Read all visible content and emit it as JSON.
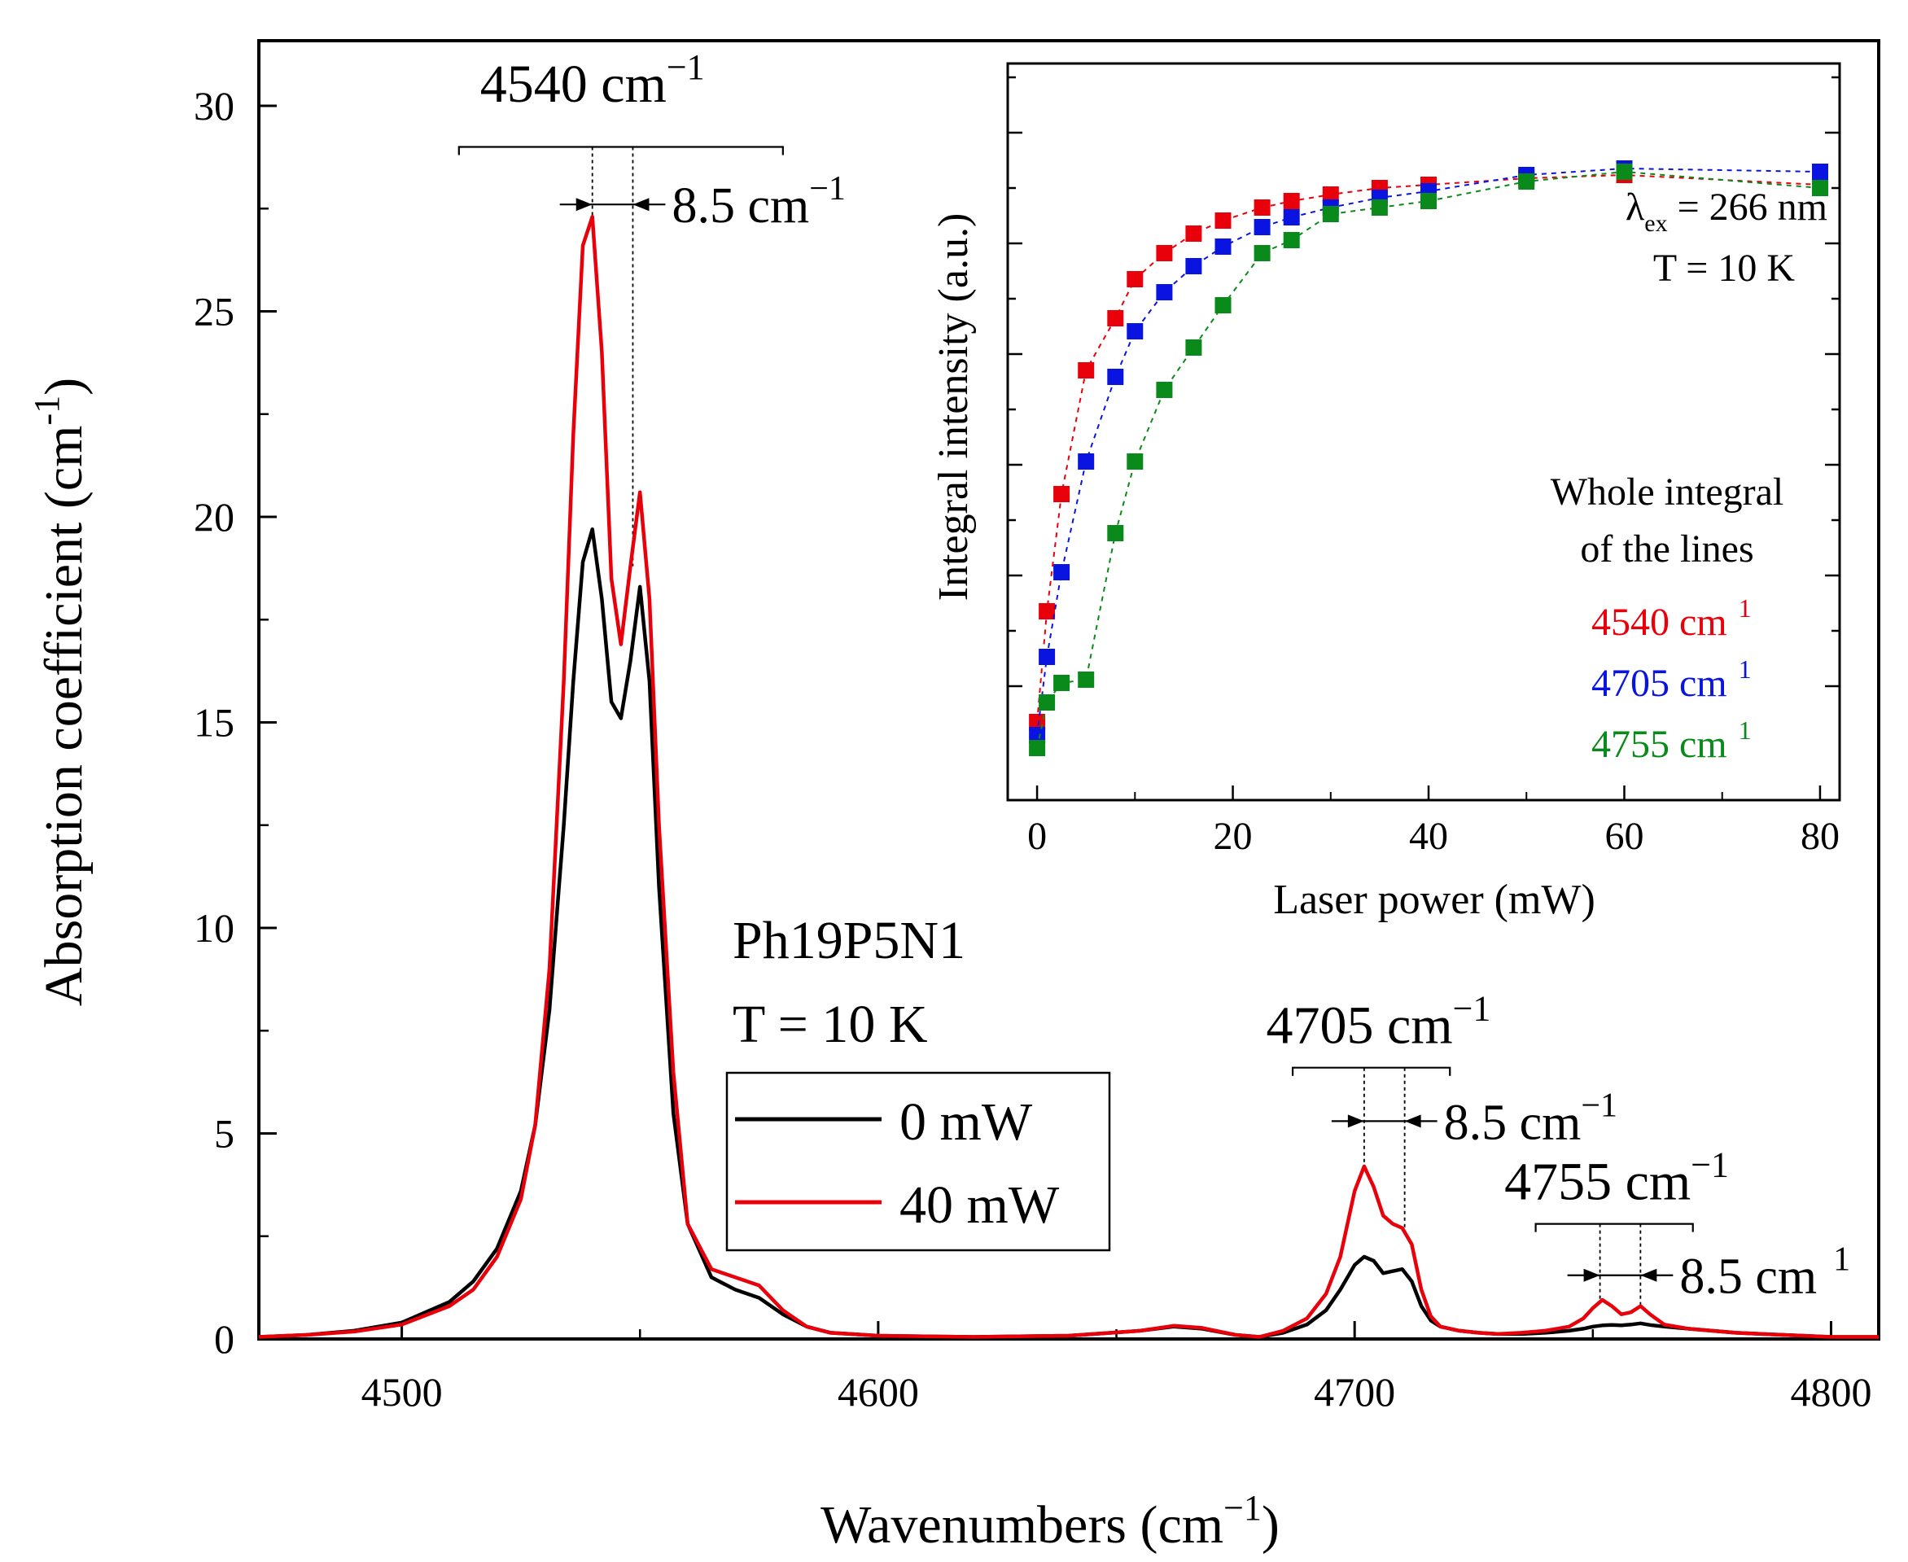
{
  "chart_data": [
    {
      "type": "line",
      "xlabel": "Wavenumbers (cm",
      "xlabel_sup": "−1",
      "xlabel_close": ")",
      "ylabel": "Absorption coefficient (cm",
      "ylabel_sup": "-1",
      "ylabel_close": ")",
      "xlim": [
        4470,
        4810
      ],
      "ylim": [
        0,
        30
      ],
      "xticks": [
        4500,
        4600,
        4700,
        4800
      ],
      "xtick_labels": [
        "4500",
        "4600",
        "4700",
        "4800"
      ],
      "yticks": [
        0,
        5,
        10,
        15,
        20,
        25,
        30
      ],
      "ytick_labels": [
        "0",
        "5",
        "10",
        "15",
        "20",
        "25",
        "30"
      ],
      "sample_label": "Ph19P5N1",
      "temperature_label": "T = 10 K",
      "legend": {
        "position": "center-bottom",
        "entries": [
          {
            "label": "0 mW",
            "color": "#000000"
          },
          {
            "label": "40 mW",
            "color": "#e8000b"
          }
        ]
      },
      "series": [
        {
          "name": "0 mW",
          "color": "#000000",
          "x": [
            4470,
            4480,
            4490,
            4500,
            4510,
            4515,
            4520,
            4525,
            4528,
            4531,
            4534,
            4536,
            4538,
            4540,
            4542,
            4544,
            4546,
            4548,
            4550,
            4552,
            4554,
            4557,
            4560,
            4565,
            4570,
            4575,
            4580,
            4585,
            4590,
            4600,
            4620,
            4640,
            4655,
            4662,
            4668,
            4675,
            4680,
            4685,
            4690,
            4694,
            4697,
            4700,
            4702,
            4704,
            4706,
            4708,
            4710,
            4712,
            4714,
            4716,
            4718,
            4722,
            4726,
            4730,
            4735,
            4740,
            4745,
            4748,
            4750,
            4752,
            4754,
            4756,
            4758,
            4760,
            4762,
            4765,
            4770,
            4780,
            4790,
            4800,
            4810
          ],
          "y": [
            0.05,
            0.1,
            0.2,
            0.4,
            0.9,
            1.4,
            2.2,
            3.6,
            5.2,
            8.0,
            12.5,
            16.0,
            18.9,
            19.7,
            18.0,
            15.5,
            15.1,
            16.5,
            18.3,
            16.0,
            11.0,
            5.5,
            2.8,
            1.5,
            1.2,
            1.0,
            0.6,
            0.3,
            0.15,
            0.08,
            0.05,
            0.08,
            0.2,
            0.3,
            0.25,
            0.1,
            0.05,
            0.15,
            0.35,
            0.7,
            1.2,
            1.8,
            2.0,
            1.9,
            1.6,
            1.65,
            1.7,
            1.4,
            0.8,
            0.45,
            0.3,
            0.2,
            0.15,
            0.12,
            0.12,
            0.15,
            0.2,
            0.25,
            0.3,
            0.33,
            0.34,
            0.33,
            0.35,
            0.38,
            0.34,
            0.3,
            0.25,
            0.15,
            0.1,
            0.05,
            0.05
          ]
        },
        {
          "name": "40 mW",
          "color": "#e8000b",
          "x": [
            4470,
            4480,
            4490,
            4500,
            4510,
            4515,
            4520,
            4525,
            4528,
            4531,
            4534,
            4536,
            4538,
            4540,
            4542,
            4544,
            4546,
            4548,
            4550,
            4552,
            4554,
            4557,
            4560,
            4565,
            4570,
            4575,
            4580,
            4585,
            4590,
            4600,
            4620,
            4640,
            4655,
            4662,
            4668,
            4675,
            4680,
            4685,
            4690,
            4694,
            4697,
            4700,
            4702,
            4704,
            4706,
            4708,
            4710,
            4712,
            4714,
            4716,
            4718,
            4722,
            4726,
            4730,
            4735,
            4740,
            4745,
            4748,
            4750,
            4752,
            4754,
            4756,
            4758,
            4760,
            4762,
            4765,
            4770,
            4780,
            4790,
            4800,
            4810
          ],
          "y": [
            0.05,
            0.1,
            0.18,
            0.35,
            0.8,
            1.2,
            2.0,
            3.4,
            5.2,
            9.0,
            16.0,
            22.0,
            26.6,
            27.3,
            24.0,
            18.5,
            16.9,
            18.8,
            20.6,
            18.0,
            12.5,
            6.5,
            2.8,
            1.7,
            1.5,
            1.3,
            0.7,
            0.3,
            0.15,
            0.08,
            0.05,
            0.08,
            0.2,
            0.32,
            0.27,
            0.1,
            0.05,
            0.2,
            0.5,
            1.1,
            2.0,
            3.6,
            4.2,
            3.7,
            3.0,
            2.8,
            2.7,
            2.3,
            1.2,
            0.55,
            0.3,
            0.2,
            0.15,
            0.12,
            0.15,
            0.2,
            0.3,
            0.5,
            0.75,
            0.95,
            0.8,
            0.6,
            0.65,
            0.8,
            0.6,
            0.35,
            0.25,
            0.15,
            0.1,
            0.05,
            0.05
          ]
        }
      ],
      "annotations": [
        {
          "text": "4540 cm",
          "sup": "−1",
          "x": 4540,
          "y": 30.1,
          "bracket_x": [
            4512,
            4580
          ],
          "bracket_y": 29.0,
          "split_text": "8.5 cm",
          "split_sup": "−1",
          "split_y": 27.6,
          "lines": [
            4540,
            4548.5
          ]
        },
        {
          "text": "4705 cm",
          "sup": "−1",
          "x": 4705,
          "y": 7.2,
          "bracket_x": [
            4687,
            4720
          ],
          "bracket_y": 6.6,
          "split_text": "8.5 cm",
          "split_sup": "−1",
          "split_y": 5.3,
          "lines": [
            4702,
            4710.5
          ]
        },
        {
          "text": "4755 cm",
          "sup": "−1",
          "x": 4755,
          "y": 3.4,
          "bracket_x": [
            4738,
            4771
          ],
          "bracket_y": 2.8,
          "split_text": "8.5 cm",
          "split_sup": "1",
          "split_y": 1.55,
          "lines": [
            4751.5,
            4760
          ]
        }
      ]
    },
    {
      "type": "scatter",
      "xlabel": "Laser power (mW)",
      "ylabel": "Integral intensity (a.u.)",
      "ylabel_color": "#e8000b",
      "xlim": [
        -3,
        82
      ],
      "ylim": [
        0,
        1.0
      ],
      "xticks": [
        0,
        20,
        40,
        60,
        80
      ],
      "xtick_labels": [
        "0",
        "20",
        "40",
        "60",
        "80"
      ],
      "excitation_label": "λ",
      "excitation_sub": "ex",
      "excitation_value": " = 266 nm",
      "temperature_label": "T = 10 K",
      "legend_title_1": "Whole integral",
      "legend_title_2": "of the lines",
      "series": [
        {
          "name": "4540 cm",
          "sup": "1",
          "color": "#e8000b",
          "x": [
            0,
            1,
            2.5,
            5,
            8,
            10,
            13,
            16,
            19,
            23,
            26,
            30,
            35,
            40,
            50,
            60,
            80
          ],
          "y": [
            0.07,
            0.24,
            0.42,
            0.61,
            0.69,
            0.75,
            0.79,
            0.82,
            0.84,
            0.86,
            0.87,
            0.88,
            0.89,
            0.895,
            0.905,
            0.91,
            0.895
          ]
        },
        {
          "name": "4705 cm",
          "sup": "1",
          "color": "#0a14e0",
          "x": [
            0,
            1,
            2.5,
            5,
            8,
            10,
            13,
            16,
            19,
            23,
            26,
            30,
            35,
            40,
            50,
            60,
            80
          ],
          "y": [
            0.05,
            0.17,
            0.3,
            0.47,
            0.6,
            0.67,
            0.73,
            0.77,
            0.8,
            0.83,
            0.845,
            0.86,
            0.875,
            0.885,
            0.91,
            0.92,
            0.915
          ]
        },
        {
          "name": "4755 cm",
          "sup": "1",
          "color": "#0a8a1a",
          "x": [
            0,
            1,
            2.5,
            5,
            8,
            10,
            13,
            16,
            19,
            23,
            26,
            30,
            35,
            40,
            50,
            60,
            80
          ],
          "y": [
            0.03,
            0.1,
            0.13,
            0.135,
            0.36,
            0.47,
            0.58,
            0.645,
            0.71,
            0.79,
            0.81,
            0.85,
            0.86,
            0.87,
            0.9,
            0.915,
            0.89
          ]
        }
      ]
    }
  ]
}
